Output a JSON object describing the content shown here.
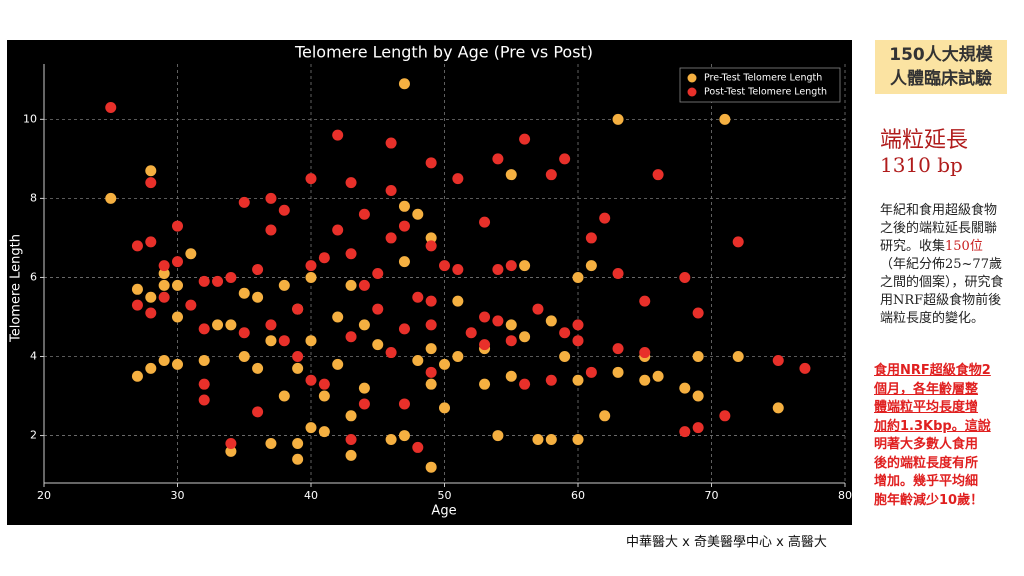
{
  "chart_data": {
    "type": "scatter",
    "title": "Telomere Length by Age (Pre vs Post)",
    "x_label": "Age",
    "y_label": "Telomere Length",
    "xlim": [
      20,
      80
    ],
    "xticks": [
      20,
      30,
      40,
      50,
      60,
      70,
      80
    ],
    "ylim": [
      0.8,
      11.4
    ],
    "yticks": [
      2,
      4,
      6,
      8,
      10
    ],
    "grid": true,
    "legend": "upper right",
    "series": [
      {
        "name": "Pre-Test Telomere Length",
        "color": "#f5b041",
        "x": [
          25,
          27,
          27,
          28,
          28,
          28,
          29,
          29,
          29,
          30,
          30,
          30,
          31,
          32,
          33,
          34,
          34,
          35,
          35,
          36,
          36,
          37,
          37,
          38,
          38,
          39,
          39,
          39,
          39,
          40,
          40,
          40,
          41,
          41,
          42,
          42,
          43,
          43,
          43,
          44,
          44,
          45,
          46,
          47,
          47,
          47,
          47,
          48,
          48,
          49,
          49,
          49,
          49,
          50,
          50,
          51,
          51,
          53,
          53,
          54,
          55,
          55,
          55,
          56,
          56,
          57,
          58,
          58,
          59,
          60,
          60,
          60,
          61,
          62,
          63,
          63,
          65,
          65,
          66,
          68,
          69,
          69,
          71,
          72,
          75
        ],
        "values": [
          8.0,
          5.7,
          3.5,
          8.7,
          5.5,
          3.7,
          6.1,
          5.8,
          3.9,
          5.8,
          5.0,
          3.8,
          6.6,
          3.9,
          4.8,
          4.8,
          1.6,
          5.6,
          4.0,
          5.5,
          3.7,
          4.4,
          1.8,
          5.8,
          3.0,
          5.2,
          3.7,
          1.8,
          1.4,
          6.0,
          4.4,
          2.2,
          3.0,
          2.1,
          5.0,
          3.8,
          5.8,
          2.5,
          1.5,
          4.8,
          3.2,
          4.3,
          1.9,
          10.9,
          7.8,
          6.4,
          2.0,
          7.6,
          3.9,
          7.0,
          4.2,
          3.3,
          1.2,
          3.8,
          2.7,
          5.4,
          4.0,
          4.2,
          3.3,
          2.0,
          8.6,
          4.8,
          3.5,
          6.3,
          4.5,
          1.9,
          1.9,
          4.9,
          4.0,
          6.0,
          3.4,
          1.9,
          6.3,
          2.5,
          10.0,
          3.6,
          4.0,
          3.4,
          3.5,
          3.2,
          4.0,
          3.0,
          10.0,
          4.0,
          2.7
        ]
      },
      {
        "name": "Post-Test Telomere Length",
        "color": "#e8302a",
        "x": [
          25,
          27,
          27,
          28,
          28,
          28,
          29,
          29,
          30,
          30,
          31,
          32,
          32,
          32,
          32,
          33,
          34,
          34,
          35,
          35,
          36,
          36,
          37,
          37,
          37,
          38,
          38,
          39,
          39,
          40,
          40,
          40,
          41,
          41,
          42,
          42,
          43,
          43,
          43,
          43,
          44,
          44,
          44,
          45,
          45,
          46,
          46,
          46,
          46,
          47,
          47,
          47,
          48,
          48,
          49,
          49,
          49,
          49,
          49,
          50,
          51,
          51,
          52,
          53,
          53,
          53,
          54,
          54,
          54,
          55,
          55,
          56,
          56,
          57,
          58,
          58,
          59,
          59,
          60,
          60,
          61,
          61,
          62,
          63,
          63,
          65,
          65,
          66,
          68,
          68,
          69,
          69,
          71,
          72,
          75,
          77
        ],
        "values": [
          10.3,
          6.8,
          5.3,
          6.9,
          8.4,
          5.1,
          6.3,
          5.5,
          7.3,
          6.4,
          5.3,
          5.9,
          4.7,
          3.3,
          2.9,
          5.9,
          6.0,
          1.8,
          7.9,
          4.6,
          6.2,
          2.6,
          8.0,
          7.2,
          4.8,
          7.7,
          4.4,
          5.2,
          4.0,
          8.5,
          6.3,
          3.4,
          6.5,
          3.3,
          9.6,
          7.2,
          8.4,
          6.6,
          4.5,
          1.9,
          7.6,
          5.8,
          2.8,
          6.1,
          5.2,
          9.4,
          8.2,
          7.0,
          4.1,
          7.3,
          4.7,
          2.8,
          5.5,
          1.7,
          8.9,
          6.8,
          5.4,
          4.8,
          3.6,
          6.3,
          8.5,
          6.2,
          4.6,
          7.4,
          5.0,
          4.3,
          9.0,
          6.2,
          4.9,
          6.3,
          4.4,
          9.5,
          3.3,
          5.2,
          8.6,
          3.4,
          9.0,
          4.6,
          4.8,
          4.4,
          7.0,
          3.6,
          7.5,
          6.1,
          4.2,
          5.4,
          4.1,
          8.6,
          6.0,
          2.1,
          5.1,
          2.2,
          2.5,
          6.9,
          3.9,
          3.7
        ]
      }
    ]
  },
  "sidebar": {
    "badge": [
      "150人大規模",
      "人體臨床試驗"
    ],
    "headline": "端粒延長",
    "amount": "1310 bp",
    "paragraph": [
      "年紀和食用超級食物之後的端粒延長關聯研究。收集",
      "150位",
      "（年紀分佈25~77歲之間的個案），研究食用NRF超級食物前後端粒長度的變化。"
    ],
    "highlight": [
      "食用NRF超級食物2",
      "個月，各年齡層整",
      "體端粒平均長度增",
      "加約1.3Kbp。這說",
      "明著大多數人食用",
      "後的端粒長度有所",
      "增加。幾乎平均細",
      "胞年齡減少10歲！"
    ]
  },
  "footer": "中華醫大 x 奇美醫學中心 x 高醫大"
}
